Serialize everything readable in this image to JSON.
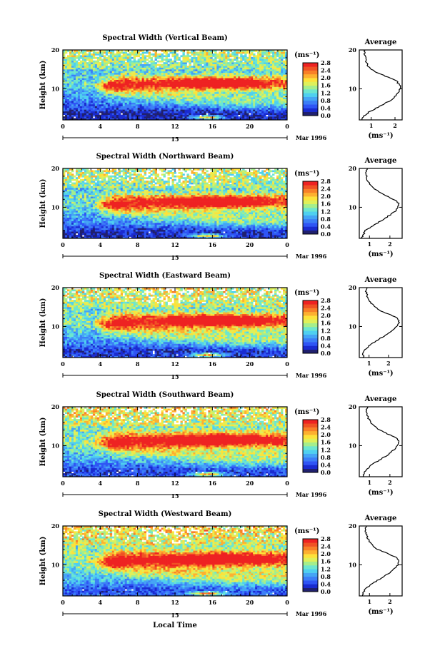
{
  "figure": {
    "xlabel": "Local Time",
    "ylabel": "Height (km)",
    "date_label": "Mar 1996",
    "day_label": "15",
    "colorbar_unit": "(ms⁻¹)",
    "colorbar_ticks": [
      "0.0",
      "0.4",
      "0.8",
      "1.2",
      "1.6",
      "2.0",
      "2.4",
      "2.8"
    ],
    "avg_title": "Average",
    "avg_xlabel": "(ms⁻¹)"
  },
  "chart_data": [
    {
      "type": "heatmap",
      "title": "Spectral Width (Vertical Beam)",
      "x_ticks": [
        "0",
        "4",
        "8",
        "12",
        "16",
        "20",
        "0"
      ],
      "xlim": [
        0,
        24
      ],
      "y_ticks": [
        "20",
        "10"
      ],
      "ylim": [
        2,
        20
      ],
      "colorbar": {
        "min": 0.0,
        "max": 2.8
      },
      "features": {
        "upper_red_band_km": 11.5,
        "red_band_hours": [
          13,
          20
        ]
      },
      "average_profile": {
        "x_ticks": [
          "1",
          "2"
        ],
        "xlim": [
          0.5,
          2.3
        ],
        "y_ticks": [
          "20",
          "10"
        ],
        "ylim": [
          2,
          20
        ],
        "height_km": [
          2,
          3,
          4,
          5,
          6,
          7,
          8,
          9,
          10,
          11,
          12,
          13,
          14,
          15,
          16,
          17,
          18,
          19,
          20
        ],
        "width_ms": [
          0.6,
          0.7,
          0.9,
          1.2,
          1.5,
          1.8,
          2.0,
          2.15,
          2.2,
          2.2,
          2.05,
          1.7,
          1.3,
          1.0,
          0.85,
          0.8,
          0.75,
          0.7,
          0.75
        ]
      }
    },
    {
      "type": "heatmap",
      "title": "Spectral Width (Northward Beam)",
      "x_ticks": [
        "0",
        "4",
        "8",
        "12",
        "16",
        "20",
        "0"
      ],
      "xlim": [
        0,
        24
      ],
      "y_ticks": [
        "20",
        "10"
      ],
      "ylim": [
        2,
        20
      ],
      "colorbar": {
        "min": 0.0,
        "max": 2.8
      },
      "average_profile": {
        "x_ticks": [
          "1",
          "2"
        ],
        "xlim": [
          0.5,
          2.6
        ],
        "y_ticks": [
          "20",
          "10"
        ],
        "ylim": [
          2,
          20
        ],
        "height_km": [
          2,
          3,
          4,
          5,
          6,
          7,
          8,
          9,
          10,
          11,
          12,
          13,
          14,
          15,
          16,
          17,
          18,
          19,
          20
        ],
        "width_ms": [
          0.6,
          0.7,
          0.8,
          1.1,
          1.4,
          1.7,
          2.0,
          2.25,
          2.4,
          2.45,
          2.2,
          1.8,
          1.45,
          1.2,
          1.0,
          0.9,
          0.85,
          0.8,
          0.9
        ]
      }
    },
    {
      "type": "heatmap",
      "title": "Spectral Width (Eastward Beam)",
      "x_ticks": [
        "0",
        "4",
        "8",
        "12",
        "16",
        "20",
        "0"
      ],
      "xlim": [
        0,
        24
      ],
      "y_ticks": [
        "20",
        "10"
      ],
      "ylim": [
        2,
        20
      ],
      "colorbar": {
        "min": 0.0,
        "max": 2.8
      },
      "average_profile": {
        "x_ticks": [
          "1",
          "2"
        ],
        "xlim": [
          0.5,
          2.7
        ],
        "y_ticks": [
          "20",
          "10"
        ],
        "ylim": [
          2,
          20
        ],
        "height_km": [
          2,
          3,
          4,
          5,
          6,
          7,
          8,
          9,
          10,
          11,
          12,
          13,
          14,
          15,
          16,
          17,
          18,
          19,
          20
        ],
        "width_ms": [
          0.7,
          0.7,
          0.8,
          1.0,
          1.3,
          1.6,
          1.9,
          2.2,
          2.4,
          2.55,
          2.5,
          2.1,
          1.6,
          1.3,
          1.1,
          0.95,
          0.9,
          0.85,
          0.9
        ]
      }
    },
    {
      "type": "heatmap",
      "title": "Spectral Width (Southward Beam)",
      "x_ticks": [
        "0",
        "4",
        "8",
        "12",
        "16",
        "20",
        "0"
      ],
      "xlim": [
        0,
        24
      ],
      "y_ticks": [
        "20",
        "10"
      ],
      "ylim": [
        2,
        20
      ],
      "colorbar": {
        "min": 0.0,
        "max": 2.8
      },
      "average_profile": {
        "x_ticks": [
          "1",
          "2"
        ],
        "xlim": [
          0.5,
          2.6
        ],
        "y_ticks": [
          "20",
          "10"
        ],
        "ylim": [
          2,
          20
        ],
        "height_km": [
          2,
          3,
          4,
          5,
          6,
          7,
          8,
          9,
          10,
          11,
          12,
          13,
          14,
          15,
          16,
          17,
          18,
          19,
          20
        ],
        "width_ms": [
          0.7,
          0.75,
          0.9,
          1.1,
          1.4,
          1.7,
          2.0,
          2.2,
          2.35,
          2.45,
          2.3,
          1.9,
          1.5,
          1.25,
          1.05,
          0.95,
          0.9,
          0.85,
          0.9
        ]
      }
    },
    {
      "type": "heatmap",
      "title": "Spectral Width (Westward Beam)",
      "x_ticks": [
        "0",
        "4",
        "8",
        "12",
        "16",
        "20",
        "0"
      ],
      "xlim": [
        0,
        24
      ],
      "y_ticks": [
        "20",
        "10"
      ],
      "ylim": [
        2,
        20
      ],
      "colorbar": {
        "min": 0.0,
        "max": 2.8
      },
      "average_profile": {
        "x_ticks": [
          "1",
          "2"
        ],
        "xlim": [
          0.5,
          2.6
        ],
        "y_ticks": [
          "20",
          "10"
        ],
        "ylim": [
          2,
          20
        ],
        "height_km": [
          2,
          3,
          4,
          5,
          6,
          7,
          8,
          9,
          10,
          11,
          12,
          13,
          14,
          15,
          16,
          17,
          18,
          19,
          20
        ],
        "width_ms": [
          0.65,
          0.7,
          0.85,
          1.1,
          1.4,
          1.7,
          2.0,
          2.2,
          2.4,
          2.45,
          2.3,
          1.85,
          1.4,
          1.15,
          1.0,
          0.9,
          0.85,
          0.8,
          0.85
        ]
      }
    }
  ]
}
